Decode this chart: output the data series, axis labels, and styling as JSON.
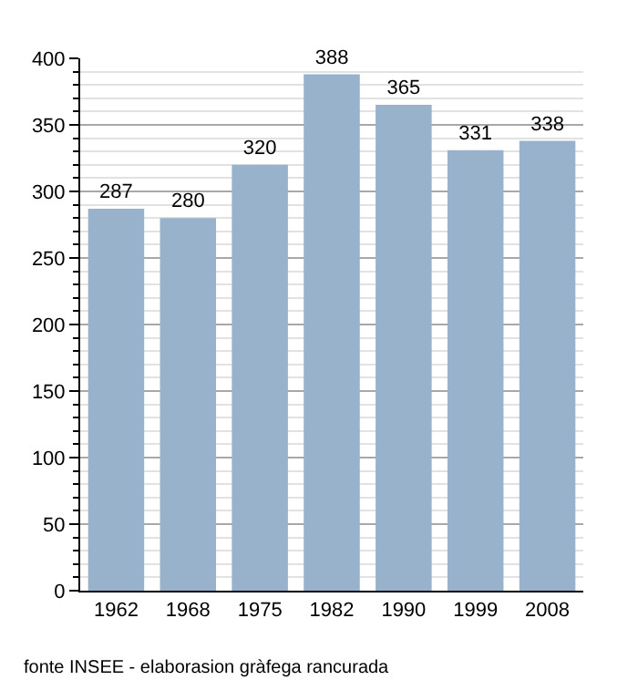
{
  "chart_data": {
    "type": "bar",
    "categories": [
      "1962",
      "1968",
      "1975",
      "1982",
      "1990",
      "1999",
      "2008"
    ],
    "values": [
      287,
      280,
      320,
      388,
      365,
      331,
      338
    ],
    "color": "#98b2cc",
    "ylim": [
      0,
      400
    ],
    "yticks": [
      0,
      50,
      100,
      150,
      200,
      250,
      300,
      350,
      400
    ],
    "grid": "y",
    "data_labels": true,
    "annotations": [
      "fonte INSEE - elaborasion gràfega rancurada"
    ]
  }
}
